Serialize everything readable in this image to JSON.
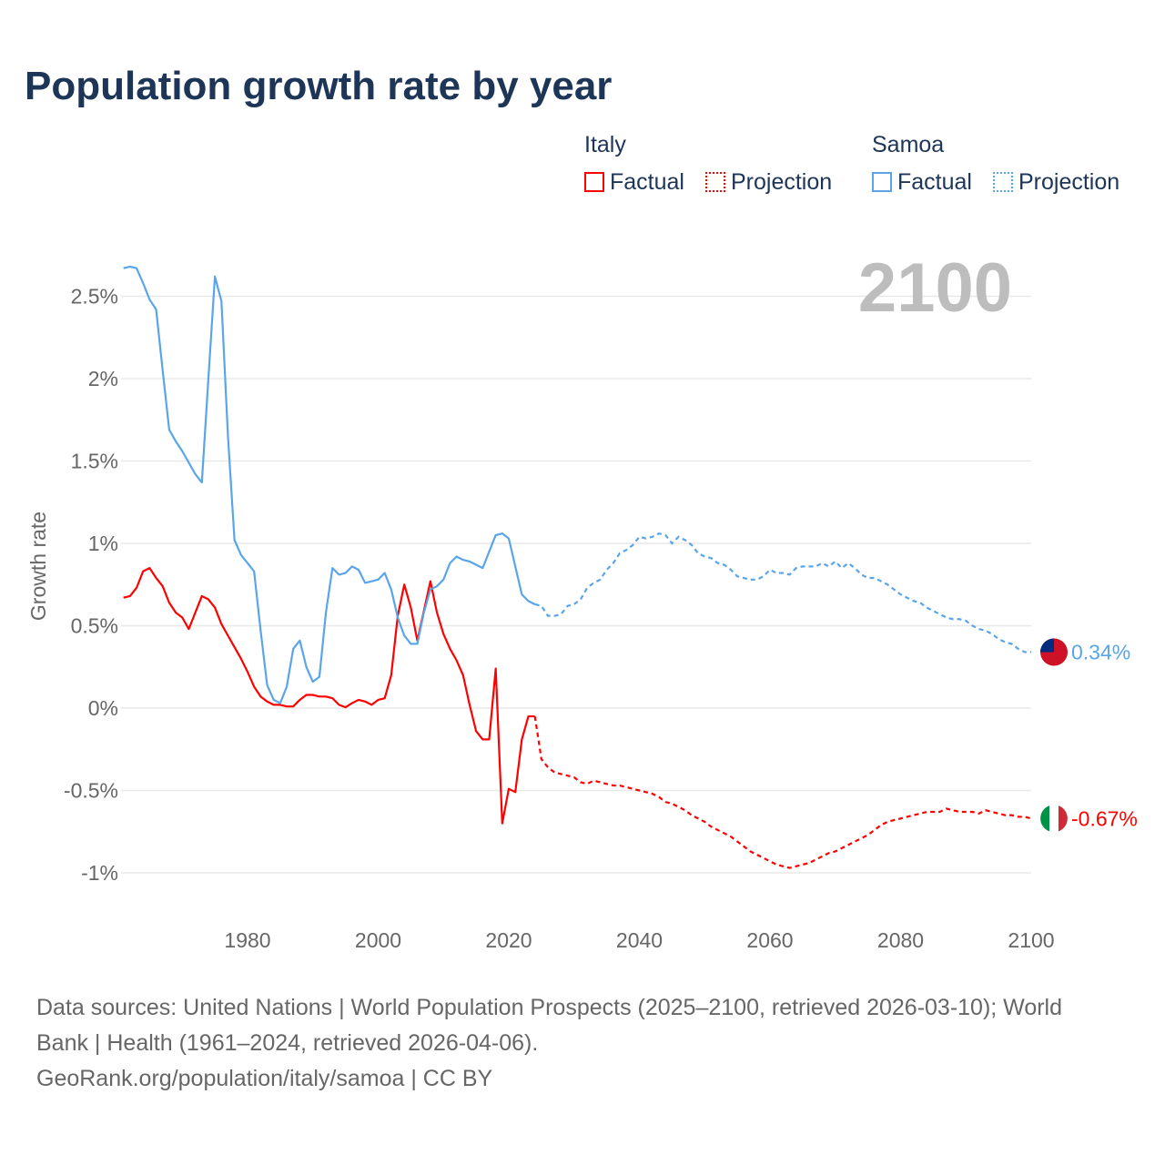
{
  "title": "Population growth rate by year",
  "legend": {
    "italy": "Italy",
    "samoa": "Samoa",
    "factual": "Factual",
    "projection": "Projection"
  },
  "footer": {
    "line1": "Data sources: United Nations | World Population Prospects (2025–2100, retrieved 2026-03-10); World",
    "line2": "Bank | Health (1961–2024, retrieved 2026-04-06).",
    "line3": "GeoRank.org/population/italy/samoa | CC BY"
  },
  "chart_data": {
    "type": "line",
    "title": "Population growth rate by year",
    "ylabel": "Growth rate",
    "year_label": "2100",
    "xlim": [
      1961,
      2100
    ],
    "ylim": [
      -1.1,
      2.75
    ],
    "xticks": [
      1980,
      2000,
      2020,
      2040,
      2060,
      2080,
      2100
    ],
    "xtick_labels": [
      "1980",
      "2000",
      "2020",
      "2040",
      "2060",
      "2080",
      "2100"
    ],
    "yticks": [
      2.5,
      2,
      1.5,
      1,
      0.5,
      0,
      -0.5,
      -1
    ],
    "ytick_labels": [
      "2.5%",
      "2%",
      "1.5%",
      "1%",
      "0.5%",
      "0%",
      "-0.5%",
      "-1%"
    ],
    "colors": {
      "italy": "#ff0000",
      "samoa": "#5aa5ea"
    },
    "end_labels": {
      "italy": "-0.67%",
      "samoa": "0.34%"
    },
    "series": [
      {
        "name": "Italy",
        "key": "italy",
        "factual_start": 1961,
        "factual": [
          0.67,
          0.68,
          0.73,
          0.83,
          0.85,
          0.79,
          0.74,
          0.64,
          0.58,
          0.55,
          0.48,
          0.58,
          0.68,
          0.66,
          0.61,
          0.51,
          0.44,
          0.37,
          0.3,
          0.22,
          0.13,
          0.07,
          0.04,
          0.02,
          0.02,
          0.01,
          0.01,
          0.05,
          0.08,
          0.08,
          0.07,
          0.07,
          0.06,
          0.02,
          0.005,
          0.03,
          0.05,
          0.04,
          0.02,
          0.05,
          0.06,
          0.2,
          0.56,
          0.75,
          0.61,
          0.41,
          0.59,
          0.77,
          0.58,
          0.45,
          0.36,
          0.29,
          0.2,
          0.02,
          -0.14,
          -0.19,
          -0.19,
          0.24,
          -0.7,
          -0.49,
          -0.51,
          -0.19,
          -0.05,
          -0.05
        ],
        "projection_start": 2025,
        "projection": [
          -0.31,
          -0.36,
          -0.39,
          -0.4,
          -0.41,
          -0.42,
          -0.45,
          -0.46,
          -0.44,
          -0.45,
          -0.46,
          -0.47,
          -0.47,
          -0.48,
          -0.49,
          -0.5,
          -0.51,
          -0.52,
          -0.54,
          -0.57,
          -0.58,
          -0.6,
          -0.62,
          -0.65,
          -0.67,
          -0.69,
          -0.72,
          -0.74,
          -0.76,
          -0.78,
          -0.81,
          -0.84,
          -0.87,
          -0.89,
          -0.91,
          -0.93,
          -0.95,
          -0.96,
          -0.97,
          -0.96,
          -0.95,
          -0.94,
          -0.92,
          -0.9,
          -0.88,
          -0.87,
          -0.85,
          -0.83,
          -0.81,
          -0.79,
          -0.77,
          -0.74,
          -0.71,
          -0.69,
          -0.68,
          -0.67,
          -0.66,
          -0.65,
          -0.64,
          -0.63,
          -0.63,
          -0.63,
          -0.61,
          -0.62,
          -0.63,
          -0.63,
          -0.63,
          -0.64,
          -0.62,
          -0.63,
          -0.64,
          -0.65,
          -0.65,
          -0.66,
          -0.66,
          -0.67
        ]
      },
      {
        "name": "Samoa",
        "key": "samoa",
        "factual_start": 1961,
        "factual": [
          2.67,
          2.68,
          2.67,
          2.58,
          2.48,
          2.42,
          2.05,
          1.69,
          1.62,
          1.56,
          1.49,
          1.42,
          1.37,
          2.0,
          2.62,
          2.47,
          1.65,
          1.02,
          0.93,
          0.88,
          0.83,
          0.47,
          0.14,
          0.05,
          0.03,
          0.13,
          0.36,
          0.41,
          0.25,
          0.16,
          0.19,
          0.58,
          0.85,
          0.81,
          0.82,
          0.86,
          0.84,
          0.76,
          0.77,
          0.78,
          0.82,
          0.72,
          0.55,
          0.44,
          0.39,
          0.39,
          0.58,
          0.72,
          0.74,
          0.78,
          0.88,
          0.92,
          0.9,
          0.89,
          0.87,
          0.85,
          0.95,
          1.05,
          1.06,
          1.03,
          0.86,
          0.69,
          0.65,
          0.63
        ],
        "projection_start": 2025,
        "projection": [
          0.62,
          0.56,
          0.56,
          0.57,
          0.62,
          0.63,
          0.66,
          0.73,
          0.76,
          0.78,
          0.84,
          0.88,
          0.94,
          0.96,
          0.99,
          1.04,
          1.03,
          1.04,
          1.06,
          1.05,
          1.0,
          1.04,
          1.02,
          0.99,
          0.94,
          0.92,
          0.91,
          0.88,
          0.87,
          0.84,
          0.8,
          0.79,
          0.78,
          0.78,
          0.8,
          0.84,
          0.82,
          0.82,
          0.81,
          0.85,
          0.86,
          0.86,
          0.86,
          0.88,
          0.86,
          0.89,
          0.85,
          0.88,
          0.85,
          0.81,
          0.79,
          0.79,
          0.77,
          0.75,
          0.72,
          0.69,
          0.67,
          0.65,
          0.64,
          0.61,
          0.59,
          0.57,
          0.55,
          0.54,
          0.54,
          0.53,
          0.5,
          0.48,
          0.47,
          0.45,
          0.42,
          0.4,
          0.39,
          0.36,
          0.34,
          0.34
        ]
      }
    ]
  }
}
